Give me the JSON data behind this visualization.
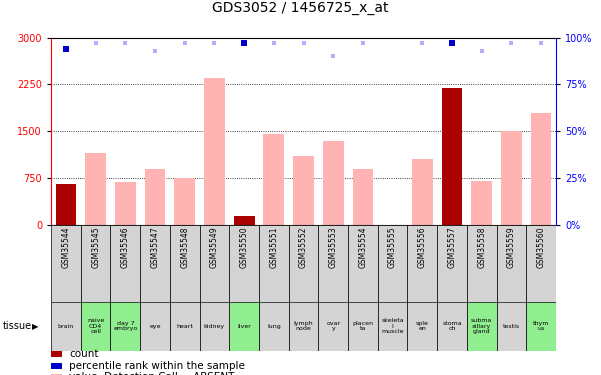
{
  "title": "GDS3052 / 1456725_x_at",
  "samples": [
    "GSM35544",
    "GSM35545",
    "GSM35546",
    "GSM35547",
    "GSM35548",
    "GSM35549",
    "GSM35550",
    "GSM35551",
    "GSM35552",
    "GSM35553",
    "GSM35554",
    "GSM35555",
    "GSM35556",
    "GSM35557",
    "GSM35558",
    "GSM35559",
    "GSM35560"
  ],
  "tissues": [
    "brain",
    "naive\nCD4\ncell",
    "day 7\nembryо",
    "eye",
    "heart",
    "kidney",
    "liver",
    "lung",
    "lymph\nnode",
    "ovar\ny",
    "placen\nta",
    "skeleta\nl\nmuscle",
    "sple\nen",
    "stoma\nch",
    "subma\nxillary\ngland",
    "testis",
    "thym\nus"
  ],
  "tissue_green": [
    false,
    true,
    true,
    false,
    false,
    false,
    true,
    false,
    false,
    false,
    false,
    false,
    false,
    false,
    true,
    false,
    true
  ],
  "values_absent": [
    null,
    1150,
    690,
    900,
    750,
    2350,
    null,
    1450,
    1100,
    1350,
    900,
    null,
    1050,
    null,
    700,
    1500,
    1800
  ],
  "values_present": [
    650,
    null,
    null,
    null,
    null,
    null,
    140,
    null,
    null,
    null,
    null,
    null,
    null,
    2200,
    null,
    null,
    null
  ],
  "rank_absent_pct": [
    null,
    97,
    97,
    93,
    97,
    97,
    null,
    97,
    97,
    90,
    97,
    null,
    97,
    null,
    93,
    97,
    97
  ],
  "rank_present_pct": [
    94,
    null,
    null,
    null,
    null,
    null,
    97,
    null,
    null,
    null,
    null,
    null,
    null,
    97,
    null,
    null,
    null
  ],
  "ylim_left": [
    0,
    3000
  ],
  "ylim_right": [
    0,
    100
  ],
  "yticks_left": [
    0,
    750,
    1500,
    2250,
    3000
  ],
  "yticks_right": [
    0,
    25,
    50,
    75,
    100
  ],
  "bar_color_absent": "#ffb3b3",
  "bar_color_present": "#aa0000",
  "dot_color_absent": "#b0b0ff",
  "dot_color_present": "#0000cc",
  "cell_color": "#d4d4d4",
  "green_color": "#90ee90",
  "title_fontsize": 10,
  "tick_fontsize": 7,
  "legend_fontsize": 7.5
}
